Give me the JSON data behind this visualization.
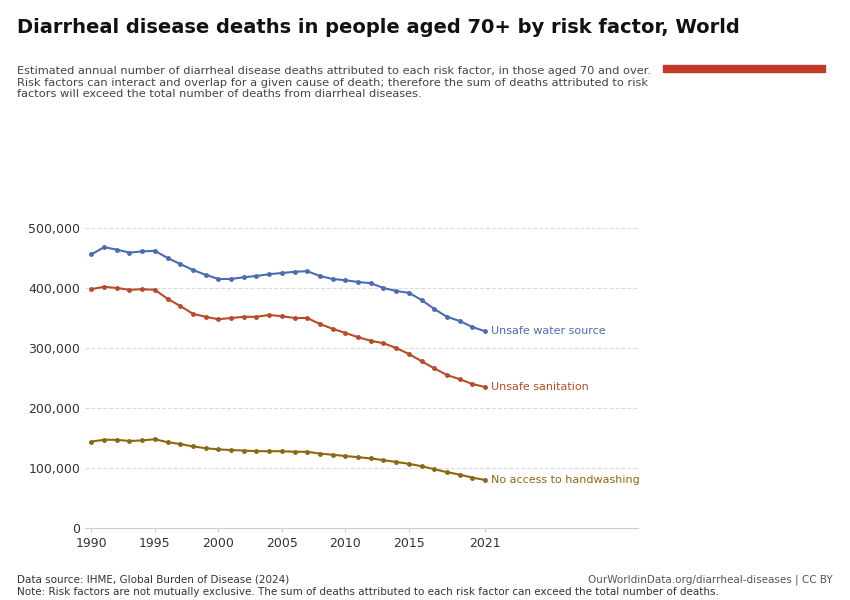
{
  "title": "Diarrheal disease deaths in people aged 70+ by risk factor, World",
  "subtitle": "Estimated annual number of diarrheal disease deaths attributed to each risk factor, in those aged 70 and over.\nRisk factors can interact and overlap for a given cause of death; therefore the sum of deaths attributed to risk\nfactors will exceed the total number of deaths from diarrheal diseases.",
  "xlabel": "",
  "ylabel": "",
  "xlim": [
    1990,
    2021
  ],
  "ylim": [
    0,
    500000
  ],
  "yticks": [
    0,
    100000,
    200000,
    300000,
    400000,
    500000
  ],
  "ytick_labels": [
    "0",
    "100,000",
    "200,000",
    "300,000",
    "400,000",
    "500,000"
  ],
  "xticks": [
    1990,
    1995,
    2000,
    2005,
    2010,
    2015,
    2021
  ],
  "background_color": "#ffffff",
  "grid_color": "#cccccc",
  "datasource": "Data source: IHME, Global Burden of Disease (2024)",
  "note": "Note: Risk factors are not mutually exclusive. The sum of deaths attributed to each risk factor can exceed the total number of deaths.",
  "url": "OurWorldinData.org/diarrheal-diseases | CC BY",
  "series": [
    {
      "name": "Unsafe water source",
      "color": "#4C6BB5",
      "label_color": "#4C6BB5",
      "years": [
        1990,
        1991,
        1992,
        1993,
        1994,
        1995,
        1996,
        1997,
        1998,
        1999,
        2000,
        2001,
        2002,
        2003,
        2004,
        2005,
        2006,
        2007,
        2008,
        2009,
        2010,
        2011,
        2012,
        2013,
        2014,
        2015,
        2016,
        2017,
        2018,
        2019,
        2020,
        2021
      ],
      "values": [
        456000,
        468000,
        464000,
        459000,
        461000,
        462000,
        450000,
        440000,
        430000,
        422000,
        415000,
        415000,
        418000,
        420000,
        423000,
        425000,
        427000,
        428000,
        420000,
        415000,
        413000,
        410000,
        408000,
        400000,
        395000,
        392000,
        380000,
        365000,
        352000,
        345000,
        335000,
        328000
      ]
    },
    {
      "name": "Unsafe sanitation",
      "color": "#B84B2B",
      "label_color": "#B84B2B",
      "years": [
        1990,
        1991,
        1992,
        1993,
        1994,
        1995,
        1996,
        1997,
        1998,
        1999,
        2000,
        2001,
        2002,
        2003,
        2004,
        2005,
        2006,
        2007,
        2008,
        2009,
        2010,
        2011,
        2012,
        2013,
        2014,
        2015,
        2016,
        2017,
        2018,
        2019,
        2020,
        2021
      ],
      "values": [
        398000,
        402000,
        400000,
        397000,
        398000,
        397000,
        382000,
        370000,
        357000,
        352000,
        348000,
        350000,
        352000,
        352000,
        355000,
        353000,
        350000,
        350000,
        340000,
        332000,
        325000,
        318000,
        312000,
        308000,
        300000,
        290000,
        278000,
        266000,
        255000,
        248000,
        240000,
        235000
      ]
    },
    {
      "name": "No access to handwashing",
      "color": "#8B6914",
      "label_color": "#8B6914",
      "years": [
        1990,
        1991,
        1992,
        1993,
        1994,
        1995,
        1996,
        1997,
        1998,
        1999,
        2000,
        2001,
        2002,
        2003,
        2004,
        2005,
        2006,
        2007,
        2008,
        2009,
        2010,
        2011,
        2012,
        2013,
        2014,
        2015,
        2016,
        2017,
        2018,
        2019,
        2020,
        2021
      ],
      "values": [
        144000,
        147000,
        147000,
        145000,
        146000,
        148000,
        143000,
        140000,
        136000,
        133000,
        131000,
        130000,
        129000,
        128000,
        128000,
        128000,
        127000,
        127000,
        124000,
        122000,
        120000,
        118000,
        116000,
        113000,
        110000,
        107000,
        103000,
        98000,
        93000,
        89000,
        84000,
        80000
      ]
    }
  ]
}
